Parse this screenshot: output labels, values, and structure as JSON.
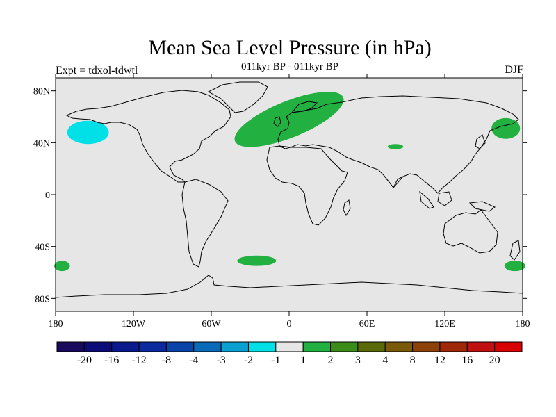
{
  "title": "Mean Sea Level Pressure (in hPa)",
  "subtitle": "011kyr BP - 011kyr BP",
  "experiment_label": "Expt = tdxol-tdwtl",
  "season": "DJF",
  "map": {
    "projection": "cylindrical-equidistant",
    "background_color": "#e6e6e6",
    "lon_range": [
      -180,
      180
    ],
    "lat_range": [
      -90,
      90
    ],
    "lat_ticks": [
      {
        "value": 80,
        "label": "80N"
      },
      {
        "value": 40,
        "label": "40N"
      },
      {
        "value": 0,
        "label": "0"
      },
      {
        "value": -40,
        "label": "40S"
      },
      {
        "value": -80,
        "label": "80S"
      }
    ],
    "lon_ticks": [
      {
        "value": -180,
        "label": "180"
      },
      {
        "value": -120,
        "label": "120W"
      },
      {
        "value": -60,
        "label": "60W"
      },
      {
        "value": 0,
        "label": "0"
      },
      {
        "value": 60,
        "label": "60E"
      },
      {
        "value": 120,
        "label": "120E"
      },
      {
        "value": 180,
        "label": "180"
      }
    ],
    "anomaly_regions": [
      {
        "name": "north-pacific-negative",
        "color": "#00e0e6",
        "bin": "-2 to -1",
        "lon": -155,
        "lat": 48,
        "lon_half_width": 16,
        "lat_half_width": 9
      },
      {
        "name": "north-atlantic-europe-positive",
        "color": "#22b040",
        "bin": "1 to 2",
        "lon": 0,
        "lat": 58,
        "lon_half_width": 45,
        "lat_half_width": 14
      },
      {
        "name": "central-asia-positive",
        "color": "#22b040",
        "bin": "1 to 2",
        "lon": 82,
        "lat": 37,
        "lon_half_width": 6,
        "lat_half_width": 2
      },
      {
        "name": "northwest-pacific-positive",
        "color": "#22b040",
        "bin": "1 to 2",
        "lon": 167,
        "lat": 51,
        "lon_half_width": 11,
        "lat_half_width": 8
      },
      {
        "name": "south-atlantic-positive",
        "color": "#22b040",
        "bin": "1 to 2",
        "lon": -25,
        "lat": -51,
        "lon_half_width": 15,
        "lat_half_width": 4
      },
      {
        "name": "south-pacific-west-positive",
        "color": "#22b040",
        "bin": "1 to 2",
        "lon": -175,
        "lat": -55,
        "lon_half_width": 6,
        "lat_half_width": 4
      },
      {
        "name": "south-pacific-east-positive",
        "color": "#22b040",
        "bin": "1 to 2",
        "lon": 174,
        "lat": -55,
        "lon_half_width": 8,
        "lat_half_width": 4
      }
    ]
  },
  "colorbar": {
    "colors": [
      "#1a0a5c",
      "#0c0c78",
      "#0a1a8c",
      "#0a2a9e",
      "#0a44a8",
      "#0a6ab8",
      "#0aa0d0",
      "#00e0e6",
      "#e6e6e6",
      "#22b040",
      "#3c8c1a",
      "#5a6a0a",
      "#7a5a0a",
      "#8c400a",
      "#a0280a",
      "#c01010",
      "#d80000"
    ],
    "labels": [
      "-20",
      "-16",
      "-12",
      "-8",
      "-4",
      "-3",
      "-2",
      "-1",
      "1",
      "2",
      "3",
      "4",
      "8",
      "12",
      "16",
      "20"
    ]
  }
}
